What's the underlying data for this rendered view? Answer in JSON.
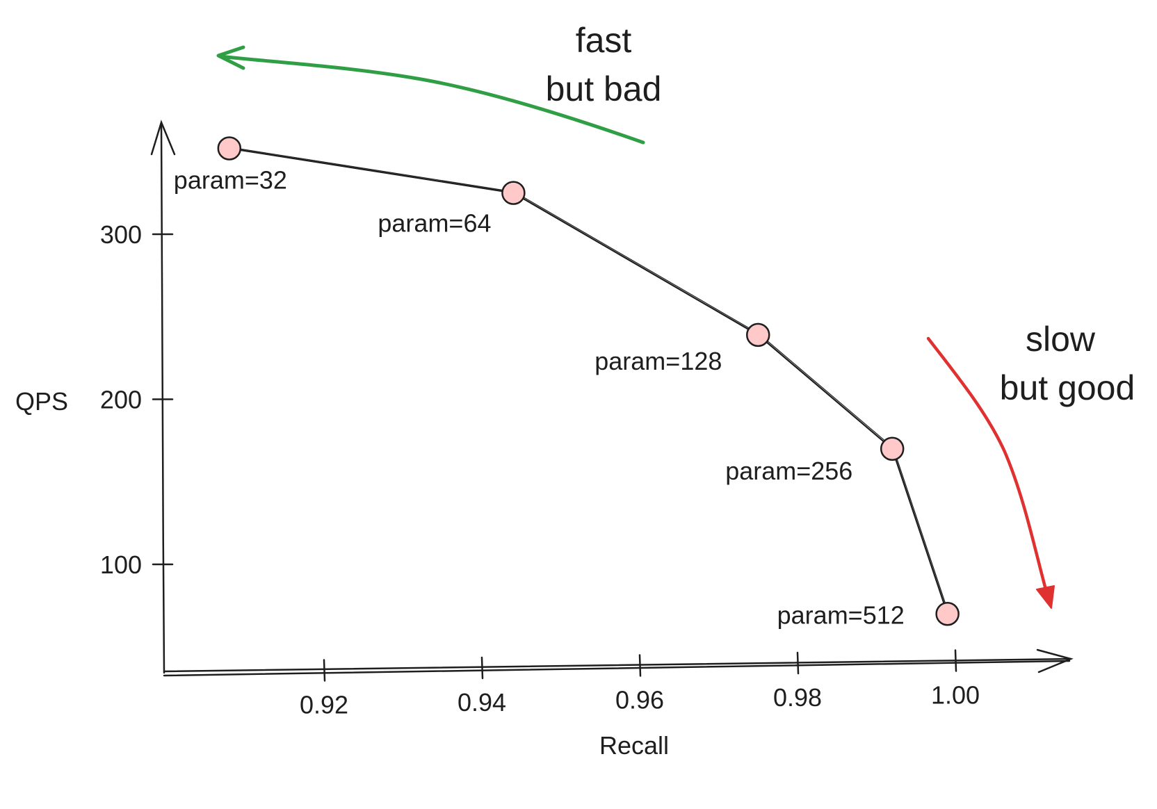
{
  "chart_data": {
    "type": "line",
    "title": "",
    "xlabel": "Recall",
    "ylabel": "QPS",
    "xticks": [
      "0.92",
      "0.94",
      "0.96",
      "0.98",
      "1.00"
    ],
    "yticks": [
      "100",
      "200",
      "300"
    ],
    "xlim": [
      0.9,
      1.015
    ],
    "ylim": [
      40,
      370
    ],
    "grid": false,
    "series": [
      {
        "points": [
          {
            "x": 0.908,
            "y": 352,
            "label": "param=32"
          },
          {
            "x": 0.944,
            "y": 325,
            "label": "param=64"
          },
          {
            "x": 0.975,
            "y": 239,
            "label": "param=128"
          },
          {
            "x": 0.992,
            "y": 170,
            "label": "param=256"
          },
          {
            "x": 0.999,
            "y": 70,
            "label": "param=512"
          }
        ]
      }
    ],
    "annotations": {
      "top": {
        "lines": [
          "fast",
          "but bad"
        ],
        "arrow_color": "#2f9e44"
      },
      "right": {
        "lines": [
          "slow",
          "but good"
        ],
        "arrow_color": "#e03131"
      }
    },
    "colors": {
      "ink": "#1e1e1e",
      "point_fill": "#ffc9c9",
      "point_stroke": "#1e1e1e"
    }
  }
}
